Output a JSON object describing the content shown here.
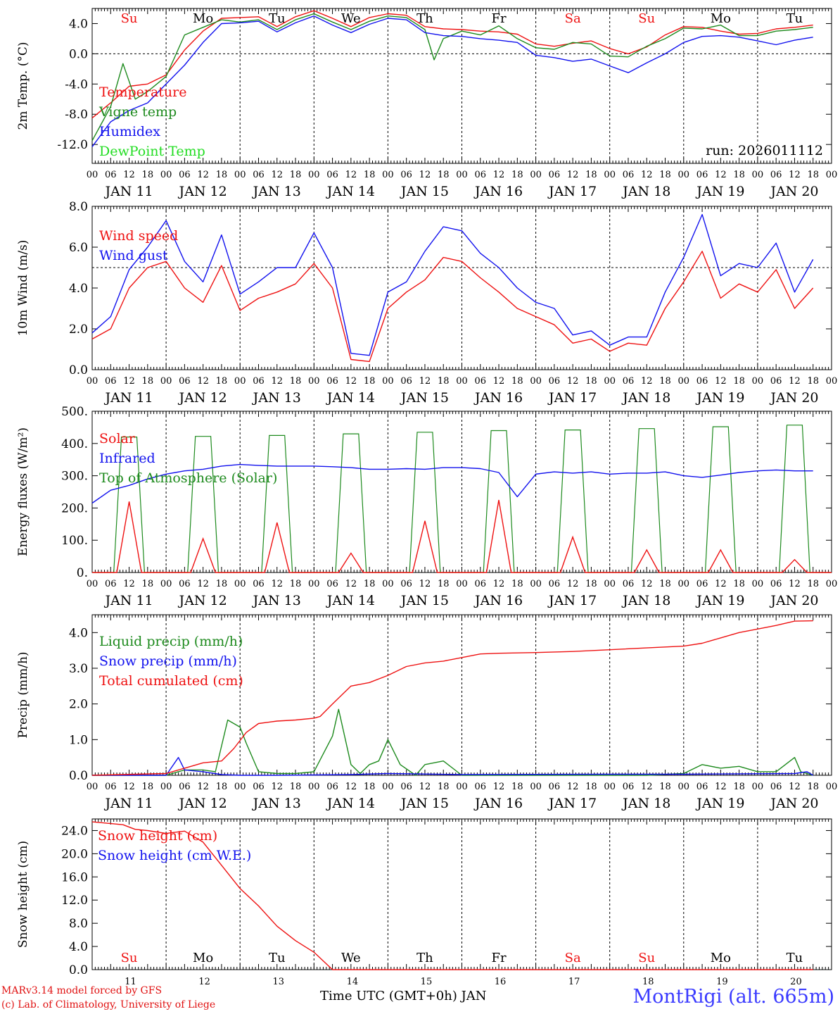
{
  "colors": {
    "red": "#ee1111",
    "green": "#1d8a1d",
    "blue": "#1111ee",
    "lime": "#22dd22",
    "axis": "#000000"
  },
  "day_labels": [
    "JAN 11",
    "JAN 12",
    "JAN 13",
    "JAN 14",
    "JAN 15",
    "JAN 16",
    "JAN 17",
    "JAN 18",
    "JAN 19",
    "JAN 20"
  ],
  "hour_labels": [
    "00",
    "06",
    "12",
    "18"
  ],
  "weekdays": [
    "Su",
    "Mo",
    "Tu",
    "We",
    "Th",
    "Fr",
    "Sa",
    "Su",
    "Mo",
    "Tu"
  ],
  "weekday_colors": [
    "red",
    "axis",
    "axis",
    "axis",
    "axis",
    "axis",
    "red",
    "red",
    "axis",
    "axis"
  ],
  "bottom_day_numbers": [
    "11",
    "12",
    "13",
    "14",
    "15",
    "16",
    "17",
    "18",
    "19",
    "20"
  ],
  "run_label": "run: 2026011112",
  "footer": {
    "credit1": "MARv3.14 model forced by GFS",
    "credit2": "(c) Lab. of Climatology, University of Liege",
    "xtitle": "Time UTC (GMT+0h) JAN",
    "station": "MontRigi (alt. 665m)"
  },
  "chart_data": [
    {
      "type": "line",
      "title": "2m Temperature",
      "ylabel": "2m Temp. (°C)",
      "ylim": [
        -14.5,
        6.0
      ],
      "yticks": [
        -12.0,
        -8.0,
        -4.0,
        0.0,
        4.0
      ],
      "ytick_labels": [
        "-12.0",
        "-8.0",
        "-4.0",
        "0.0",
        "4.0"
      ],
      "ref_line": 0.0,
      "x_unit": "hours since JAN 11 00 UTC",
      "series": [
        {
          "name": "Temperature",
          "color": "red",
          "x": [
            0,
            6,
            12,
            18,
            24,
            30,
            36,
            42,
            48,
            54,
            60,
            66,
            72,
            78,
            84,
            90,
            96,
            102,
            108,
            114,
            120,
            126,
            132,
            138,
            144,
            150,
            156,
            162,
            168,
            174,
            180,
            186,
            192,
            198,
            204,
            210,
            216,
            222,
            228,
            234
          ],
          "y": [
            -8.5,
            -6.5,
            -4.3,
            -4.0,
            -2.8,
            0.5,
            3.0,
            4.7,
            4.8,
            4.9,
            3.6,
            4.9,
            5.7,
            4.7,
            3.6,
            4.8,
            5.3,
            5.1,
            3.6,
            3.3,
            3.2,
            3.0,
            2.9,
            2.6,
            1.3,
            1.0,
            1.4,
            1.7,
            0.7,
            0.0,
            0.9,
            2.5,
            3.6,
            3.5,
            3.0,
            2.6,
            2.7,
            3.3,
            3.5,
            3.8
          ]
        },
        {
          "name": "Vigne temp",
          "color": "green",
          "x": [
            0,
            6,
            10,
            14,
            18,
            24,
            30,
            36,
            42,
            48,
            54,
            60,
            66,
            72,
            78,
            84,
            90,
            96,
            102,
            108,
            111,
            114,
            120,
            126,
            132,
            138,
            144,
            150,
            156,
            162,
            168,
            174,
            180,
            186,
            192,
            198,
            204,
            210,
            216,
            222,
            228,
            234
          ],
          "y": [
            -11.5,
            -7.0,
            -1.3,
            -6.0,
            -5.0,
            -3.0,
            2.5,
            3.5,
            4.5,
            4.2,
            4.5,
            3.2,
            4.5,
            5.3,
            4.2,
            3.2,
            4.3,
            5.0,
            4.8,
            3.2,
            -0.8,
            2.0,
            3.0,
            2.5,
            3.7,
            2.0,
            0.8,
            0.6,
            1.5,
            1.3,
            -0.3,
            -0.4,
            1.0,
            2.0,
            3.4,
            3.3,
            3.8,
            2.4,
            2.4,
            3.0,
            3.2,
            3.5
          ]
        },
        {
          "name": "Humidex",
          "color": "blue",
          "x": [
            0,
            6,
            12,
            18,
            24,
            30,
            36,
            42,
            48,
            54,
            60,
            66,
            72,
            78,
            84,
            90,
            96,
            102,
            108,
            114,
            120,
            126,
            132,
            138,
            144,
            150,
            156,
            162,
            168,
            174,
            180,
            186,
            192,
            198,
            204,
            210,
            216,
            222,
            228,
            234
          ],
          "y": [
            -12.3,
            -9.0,
            -7.5,
            -6.5,
            -4.0,
            -1.5,
            1.5,
            4.0,
            4.1,
            4.3,
            2.9,
            4.1,
            5.0,
            3.8,
            2.8,
            3.9,
            4.7,
            4.5,
            2.8,
            2.4,
            2.3,
            2.0,
            1.8,
            1.5,
            -0.2,
            -0.5,
            -1.0,
            -0.7,
            -1.6,
            -2.5,
            -1.2,
            0.0,
            1.5,
            2.3,
            2.4,
            2.2,
            1.7,
            1.2,
            1.8,
            2.2
          ]
        },
        {
          "name": "DewPoint Temp",
          "color": "lime",
          "x": [],
          "y": []
        }
      ]
    },
    {
      "type": "line",
      "title": "10m Wind",
      "ylabel": "10m Wind (m/s)",
      "ylim": [
        0.0,
        8.0
      ],
      "yticks": [
        0.0,
        2.0,
        4.0,
        6.0,
        8.0
      ],
      "ytick_labels": [
        "0.0",
        "2.0",
        "4.0",
        "6.0",
        "8.0"
      ],
      "ref_line": 5.0,
      "series": [
        {
          "name": "Wind speed",
          "color": "red",
          "x": [
            0,
            6,
            12,
            18,
            24,
            30,
            36,
            42,
            48,
            54,
            60,
            66,
            72,
            78,
            84,
            90,
            96,
            102,
            108,
            114,
            120,
            126,
            132,
            138,
            144,
            150,
            156,
            162,
            168,
            174,
            180,
            186,
            192,
            198,
            204,
            210,
            216,
            222,
            228,
            234
          ],
          "y": [
            1.5,
            2.0,
            4.0,
            5.0,
            5.3,
            4.0,
            3.3,
            5.1,
            2.9,
            3.5,
            3.8,
            4.2,
            5.2,
            4.0,
            0.5,
            0.4,
            3.0,
            3.8,
            4.4,
            5.5,
            5.3,
            4.5,
            3.8,
            3.0,
            2.6,
            2.2,
            1.3,
            1.5,
            0.9,
            1.3,
            1.2,
            3.0,
            4.3,
            5.8,
            3.5,
            4.2,
            3.8,
            4.9,
            3.0,
            4.0
          ]
        },
        {
          "name": "Wind gust",
          "color": "blue",
          "x": [
            0,
            6,
            12,
            18,
            24,
            30,
            36,
            42,
            48,
            54,
            60,
            66,
            72,
            78,
            84,
            90,
            96,
            102,
            108,
            114,
            120,
            126,
            132,
            138,
            144,
            150,
            156,
            162,
            168,
            174,
            180,
            186,
            192,
            198,
            204,
            210,
            216,
            222,
            228,
            234
          ],
          "y": [
            1.8,
            2.6,
            4.9,
            6.0,
            7.3,
            5.3,
            4.3,
            6.6,
            3.7,
            4.3,
            5.0,
            5.0,
            6.7,
            5.0,
            0.8,
            0.7,
            3.8,
            4.3,
            5.8,
            7.0,
            6.8,
            5.7,
            5.0,
            4.0,
            3.3,
            3.0,
            1.7,
            1.9,
            1.2,
            1.6,
            1.6,
            3.8,
            5.5,
            7.6,
            4.6,
            5.2,
            5.0,
            6.2,
            3.8,
            5.4
          ]
        }
      ]
    },
    {
      "type": "line",
      "title": "Energy fluxes",
      "ylabel": "Energy fluxes (W/m²)",
      "ylim": [
        0,
        500
      ],
      "yticks": [
        0,
        100,
        200,
        300,
        400,
        500
      ],
      "ytick_labels": [
        "0.",
        "100.",
        "200.",
        "300.",
        "400.",
        "500."
      ],
      "daily_peaks": {
        "solar": [
          220,
          105,
          155,
          60,
          160,
          225,
          110,
          70,
          70,
          40
        ],
        "top_of_atmosphere": [
          420,
          422,
          425,
          430,
          435,
          440,
          442,
          446,
          452,
          457
        ]
      },
      "series": [
        {
          "name": "Solar",
          "color": "red"
        },
        {
          "name": "Infrared",
          "color": "blue",
          "x": [
            0,
            6,
            12,
            18,
            24,
            30,
            36,
            42,
            48,
            54,
            60,
            66,
            72,
            78,
            84,
            90,
            96,
            102,
            108,
            114,
            120,
            126,
            132,
            138,
            144,
            150,
            156,
            162,
            168,
            174,
            180,
            186,
            192,
            198,
            204,
            210,
            216,
            222,
            228,
            234
          ],
          "y": [
            215,
            255,
            270,
            290,
            305,
            315,
            320,
            330,
            335,
            332,
            330,
            330,
            330,
            328,
            325,
            320,
            320,
            322,
            320,
            325,
            325,
            322,
            310,
            235,
            305,
            312,
            308,
            312,
            305,
            308,
            308,
            312,
            300,
            295,
            302,
            310,
            315,
            318,
            315,
            315
          ]
        },
        {
          "name": "Top of Atmosphere (Solar)",
          "color": "green"
        }
      ]
    },
    {
      "type": "line",
      "title": "Precipitation",
      "ylabel": "Precip (mm/h)",
      "ylim": [
        0.0,
        4.5
      ],
      "yticks": [
        0.0,
        1.0,
        2.0,
        3.0,
        4.0
      ],
      "ytick_labels": [
        "0.0",
        "1.0",
        "2.0",
        "3.0",
        "4.0"
      ],
      "series": [
        {
          "name": "Liquid precip (mm/h)",
          "color": "green",
          "x": [
            0,
            24,
            30,
            36,
            40,
            44,
            48,
            50,
            54,
            60,
            66,
            72,
            78,
            80,
            84,
            87,
            90,
            93,
            96,
            100,
            105,
            108,
            114,
            120,
            126,
            132,
            138,
            144,
            150,
            156,
            168,
            180,
            192,
            198,
            204,
            210,
            216,
            222,
            228,
            230,
            234
          ],
          "y": [
            0.0,
            0.0,
            0.15,
            0.15,
            0.1,
            1.55,
            1.35,
            0.9,
            0.1,
            0.05,
            0.05,
            0.1,
            1.1,
            1.85,
            0.3,
            0.05,
            0.3,
            0.4,
            1.0,
            0.3,
            0.0,
            0.3,
            0.4,
            0.0,
            0.0,
            0.0,
            0.0,
            0.0,
            0.0,
            0.0,
            0.0,
            0.0,
            0.05,
            0.3,
            0.2,
            0.25,
            0.1,
            0.1,
            0.5,
            0.1,
            0.0
          ]
        },
        {
          "name": "Snow precip (mm/h)",
          "color": "blue",
          "x": [
            0,
            24,
            28,
            30,
            36,
            42,
            48,
            60,
            84,
            96,
            120,
            168,
            192,
            228,
            232,
            234
          ],
          "y": [
            0.0,
            0.0,
            0.5,
            0.15,
            0.1,
            0.02,
            0.0,
            0.0,
            0.02,
            0.05,
            0.02,
            0.03,
            0.03,
            0.05,
            0.1,
            0.0
          ]
        },
        {
          "name": "Total cumulated (cm)",
          "color": "red",
          "x": [
            0,
            24,
            30,
            36,
            42,
            46,
            50,
            54,
            60,
            66,
            72,
            74,
            78,
            84,
            90,
            96,
            102,
            108,
            114,
            120,
            126,
            132,
            144,
            156,
            168,
            180,
            192,
            198,
            204,
            210,
            216,
            222,
            228,
            234
          ],
          "y": [
            0.0,
            0.05,
            0.2,
            0.35,
            0.4,
            0.75,
            1.2,
            1.45,
            1.52,
            1.55,
            1.6,
            1.65,
            2.0,
            2.5,
            2.6,
            2.8,
            3.05,
            3.15,
            3.2,
            3.3,
            3.4,
            3.42,
            3.44,
            3.47,
            3.52,
            3.57,
            3.62,
            3.7,
            3.85,
            4.0,
            4.1,
            4.2,
            4.32,
            4.33
          ]
        }
      ]
    },
    {
      "type": "line",
      "title": "Snow height",
      "ylabel": "Snow height (cm)",
      "ylim": [
        0.0,
        26.0
      ],
      "yticks": [
        0.0,
        4.0,
        8.0,
        12.0,
        16.0,
        20.0,
        24.0
      ],
      "ytick_labels": [
        "0.0",
        "4.0",
        "8.0",
        "12.0",
        "16.0",
        "20.0",
        "24.0"
      ],
      "series": [
        {
          "name": "Snow height (cm)",
          "color": "red",
          "x": [
            0,
            10,
            14,
            18,
            24,
            30,
            36,
            42,
            48,
            54,
            60,
            66,
            72,
            78,
            80,
            234
          ],
          "y": [
            25.5,
            25.0,
            24.2,
            24.0,
            23.5,
            23.9,
            22.0,
            18.0,
            14.0,
            11.0,
            7.5,
            5.0,
            3.0,
            0.0,
            0.0,
            0.0
          ]
        },
        {
          "name": "Snow height (cm W.E.)",
          "color": "blue",
          "x": [],
          "y": []
        }
      ]
    }
  ]
}
